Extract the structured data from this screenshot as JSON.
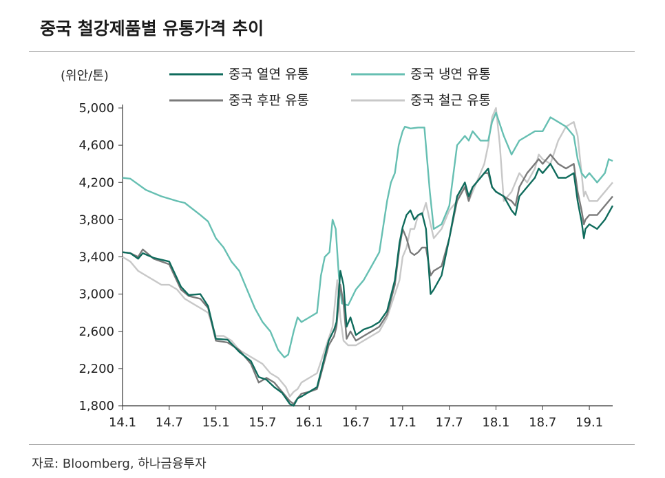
{
  "title": "중국 철강제품별 유통가격 추이",
  "source": "자료: Bloomberg, 하나금융투자",
  "chart_data": {
    "type": "line",
    "unit_label": "(위안/톤)",
    "ylim": [
      1800,
      5000
    ],
    "yticks": [
      1800,
      2200,
      2600,
      3000,
      3400,
      3800,
      4200,
      4600,
      5000
    ],
    "ytick_labels": [
      "1,800",
      "2,200",
      "2,600",
      "3,000",
      "3,400",
      "3,800",
      "4,200",
      "4,600",
      "5,000"
    ],
    "xlim": [
      0,
      63
    ],
    "xticks": [
      0,
      6,
      12,
      18,
      24,
      30,
      36,
      42,
      48,
      54,
      60
    ],
    "xtick_labels": [
      "14.1",
      "14.7",
      "15.1",
      "15.7",
      "16.1",
      "16.7",
      "17.1",
      "17.7",
      "18.1",
      "18.7",
      "19.1"
    ],
    "legend_position": "top",
    "series": [
      {
        "name": "중국 열연 유통",
        "color": "#0f6b5c",
        "points": [
          [
            0,
            3450
          ],
          [
            1,
            3440
          ],
          [
            2,
            3380
          ],
          [
            2.6,
            3440
          ],
          [
            4,
            3390
          ],
          [
            6,
            3350
          ],
          [
            7.5,
            3080
          ],
          [
            8.5,
            2990
          ],
          [
            10,
            3000
          ],
          [
            11,
            2870
          ],
          [
            12,
            2520
          ],
          [
            13.5,
            2510
          ],
          [
            15,
            2380
          ],
          [
            16.5,
            2280
          ],
          [
            17.5,
            2110
          ],
          [
            18.5,
            2080
          ],
          [
            19.5,
            2000
          ],
          [
            20.5,
            1940
          ],
          [
            21.5,
            1820
          ],
          [
            22,
            1800
          ],
          [
            22.5,
            1880
          ],
          [
            23,
            1900
          ],
          [
            24,
            1950
          ],
          [
            25,
            2000
          ],
          [
            26.5,
            2500
          ],
          [
            27.2,
            2620
          ],
          [
            27.5,
            2700
          ],
          [
            28,
            3250
          ],
          [
            28.4,
            3100
          ],
          [
            28.8,
            2650
          ],
          [
            29.3,
            2750
          ],
          [
            30,
            2560
          ],
          [
            31,
            2620
          ],
          [
            32,
            2650
          ],
          [
            33,
            2700
          ],
          [
            34,
            2820
          ],
          [
            35,
            3150
          ],
          [
            35.6,
            3550
          ],
          [
            36,
            3720
          ],
          [
            36.5,
            3850
          ],
          [
            37,
            3900
          ],
          [
            37.5,
            3800
          ],
          [
            38,
            3850
          ],
          [
            38.5,
            3870
          ],
          [
            39,
            3700
          ],
          [
            39.6,
            3000
          ],
          [
            40,
            3050
          ],
          [
            41,
            3200
          ],
          [
            42,
            3600
          ],
          [
            43,
            4050
          ],
          [
            44,
            4200
          ],
          [
            44.5,
            4050
          ],
          [
            45,
            4150
          ],
          [
            46,
            4250
          ],
          [
            46.5,
            4300
          ],
          [
            47,
            4350
          ],
          [
            47.5,
            4150
          ],
          [
            48,
            4100
          ],
          [
            49,
            4050
          ],
          [
            50,
            3900
          ],
          [
            50.5,
            3850
          ],
          [
            51,
            4050
          ],
          [
            52,
            4150
          ],
          [
            53,
            4250
          ],
          [
            53.5,
            4350
          ],
          [
            54,
            4300
          ],
          [
            55,
            4400
          ],
          [
            56,
            4250
          ],
          [
            57,
            4250
          ],
          [
            58,
            4300
          ],
          [
            58.5,
            4000
          ],
          [
            59,
            3780
          ],
          [
            59.3,
            3600
          ],
          [
            59.5,
            3700
          ],
          [
            60,
            3750
          ],
          [
            61,
            3700
          ],
          [
            62,
            3800
          ],
          [
            63,
            3950
          ]
        ]
      },
      {
        "name": "중국 냉연 유통",
        "color": "#66bfb2",
        "points": [
          [
            0,
            4250
          ],
          [
            1,
            4240
          ],
          [
            3,
            4120
          ],
          [
            5,
            4050
          ],
          [
            7,
            4000
          ],
          [
            8,
            3980
          ],
          [
            10,
            3850
          ],
          [
            11,
            3780
          ],
          [
            12,
            3600
          ],
          [
            13,
            3500
          ],
          [
            14,
            3350
          ],
          [
            15,
            3250
          ],
          [
            16,
            3050
          ],
          [
            17,
            2850
          ],
          [
            18,
            2700
          ],
          [
            19,
            2600
          ],
          [
            20,
            2400
          ],
          [
            20.8,
            2320
          ],
          [
            21.3,
            2350
          ],
          [
            22,
            2600
          ],
          [
            22.5,
            2750
          ],
          [
            23,
            2700
          ],
          [
            24,
            2750
          ],
          [
            25,
            2800
          ],
          [
            25.5,
            3200
          ],
          [
            26,
            3400
          ],
          [
            26.6,
            3450
          ],
          [
            27,
            3800
          ],
          [
            27.4,
            3700
          ],
          [
            27.8,
            3200
          ],
          [
            28.2,
            2900
          ],
          [
            29,
            2880
          ],
          [
            30,
            3050
          ],
          [
            31,
            3150
          ],
          [
            32,
            3300
          ],
          [
            33,
            3450
          ],
          [
            34,
            4000
          ],
          [
            34.5,
            4200
          ],
          [
            35,
            4300
          ],
          [
            35.5,
            4600
          ],
          [
            36,
            4750
          ],
          [
            36.3,
            4800
          ],
          [
            37,
            4780
          ],
          [
            38,
            4790
          ],
          [
            38.8,
            4790
          ],
          [
            39.5,
            4100
          ],
          [
            40,
            3700
          ],
          [
            41,
            3750
          ],
          [
            42,
            3950
          ],
          [
            43,
            4600
          ],
          [
            44,
            4700
          ],
          [
            44.5,
            4650
          ],
          [
            45,
            4750
          ],
          [
            46,
            4650
          ],
          [
            47,
            4650
          ],
          [
            47.5,
            4850
          ],
          [
            48,
            4950
          ],
          [
            49,
            4700
          ],
          [
            50,
            4500
          ],
          [
            51,
            4650
          ],
          [
            52,
            4700
          ],
          [
            53,
            4750
          ],
          [
            54,
            4750
          ],
          [
            55,
            4900
          ],
          [
            56,
            4850
          ],
          [
            57,
            4800
          ],
          [
            58,
            4700
          ],
          [
            58.5,
            4450
          ],
          [
            59,
            4300
          ],
          [
            59.5,
            4250
          ],
          [
            60,
            4300
          ],
          [
            61,
            4200
          ],
          [
            62,
            4300
          ],
          [
            62.5,
            4450
          ],
          [
            63,
            4430
          ]
        ]
      },
      {
        "name": "중국 후판 유통",
        "color": "#7a7a7a",
        "points": [
          [
            0,
            3450
          ],
          [
            1,
            3440
          ],
          [
            2,
            3400
          ],
          [
            2.6,
            3480
          ],
          [
            4,
            3380
          ],
          [
            6,
            3320
          ],
          [
            7.5,
            3050
          ],
          [
            8.5,
            2980
          ],
          [
            10,
            2950
          ],
          [
            11,
            2850
          ],
          [
            12,
            2500
          ],
          [
            13.5,
            2480
          ],
          [
            15,
            2400
          ],
          [
            16.5,
            2250
          ],
          [
            17.5,
            2050
          ],
          [
            18.5,
            2100
          ],
          [
            19.5,
            2050
          ],
          [
            20.5,
            1950
          ],
          [
            21.5,
            1850
          ],
          [
            22,
            1820
          ],
          [
            22.5,
            1880
          ],
          [
            23,
            1930
          ],
          [
            24,
            1950
          ],
          [
            25,
            1980
          ],
          [
            26.5,
            2450
          ],
          [
            27.2,
            2550
          ],
          [
            27.5,
            2650
          ],
          [
            28,
            3100
          ],
          [
            28.4,
            2900
          ],
          [
            28.8,
            2520
          ],
          [
            29.3,
            2600
          ],
          [
            30,
            2500
          ],
          [
            31,
            2550
          ],
          [
            32,
            2600
          ],
          [
            33,
            2650
          ],
          [
            34,
            2780
          ],
          [
            35,
            3100
          ],
          [
            35.6,
            3500
          ],
          [
            36,
            3700
          ],
          [
            36.5,
            3600
          ],
          [
            37,
            3450
          ],
          [
            37.5,
            3420
          ],
          [
            38,
            3450
          ],
          [
            38.5,
            3500
          ],
          [
            39,
            3500
          ],
          [
            39.6,
            3200
          ],
          [
            40,
            3250
          ],
          [
            41,
            3300
          ],
          [
            42,
            3600
          ],
          [
            43,
            4000
          ],
          [
            44,
            4150
          ],
          [
            44.5,
            4000
          ],
          [
            45,
            4150
          ],
          [
            46,
            4250
          ],
          [
            46.5,
            4300
          ],
          [
            47,
            4300
          ],
          [
            47.5,
            4150
          ],
          [
            48,
            4100
          ],
          [
            49,
            4050
          ],
          [
            50,
            4000
          ],
          [
            50.5,
            3950
          ],
          [
            51,
            4150
          ],
          [
            52,
            4300
          ],
          [
            53,
            4400
          ],
          [
            53.5,
            4450
          ],
          [
            54,
            4400
          ],
          [
            55,
            4500
          ],
          [
            56,
            4400
          ],
          [
            57,
            4350
          ],
          [
            58,
            4400
          ],
          [
            58.5,
            4100
          ],
          [
            59,
            3900
          ],
          [
            59.3,
            3750
          ],
          [
            59.5,
            3800
          ],
          [
            60,
            3850
          ],
          [
            61,
            3850
          ],
          [
            62,
            3950
          ],
          [
            63,
            4050
          ]
        ]
      },
      {
        "name": "중국 철근 유통",
        "color": "#c8c8c8",
        "points": [
          [
            0,
            3400
          ],
          [
            1,
            3350
          ],
          [
            2,
            3250
          ],
          [
            3,
            3200
          ],
          [
            4,
            3150
          ],
          [
            5,
            3100
          ],
          [
            6,
            3100
          ],
          [
            7,
            3050
          ],
          [
            8,
            2950
          ],
          [
            9,
            2900
          ],
          [
            10,
            2850
          ],
          [
            11,
            2800
          ],
          [
            12,
            2550
          ],
          [
            13,
            2550
          ],
          [
            14,
            2500
          ],
          [
            15,
            2400
          ],
          [
            16,
            2350
          ],
          [
            17,
            2300
          ],
          [
            18,
            2250
          ],
          [
            19,
            2150
          ],
          [
            20,
            2100
          ],
          [
            21,
            2000
          ],
          [
            21.5,
            1900
          ],
          [
            22,
            1950
          ],
          [
            22.5,
            1980
          ],
          [
            23,
            2050
          ],
          [
            24,
            2100
          ],
          [
            25,
            2150
          ],
          [
            26,
            2400
          ],
          [
            26.6,
            2550
          ],
          [
            27,
            2650
          ],
          [
            27.6,
            3150
          ],
          [
            28,
            2750
          ],
          [
            28.4,
            2500
          ],
          [
            29,
            2450
          ],
          [
            30,
            2450
          ],
          [
            31,
            2500
          ],
          [
            32,
            2550
          ],
          [
            33,
            2600
          ],
          [
            34,
            2750
          ],
          [
            35,
            3000
          ],
          [
            35.6,
            3150
          ],
          [
            36,
            3400
          ],
          [
            36.5,
            3500
          ],
          [
            37,
            3700
          ],
          [
            37.5,
            3700
          ],
          [
            38,
            3850
          ],
          [
            38.5,
            3850
          ],
          [
            39,
            3980
          ],
          [
            39.6,
            3750
          ],
          [
            40,
            3600
          ],
          [
            41,
            3700
          ],
          [
            42,
            3900
          ],
          [
            43,
            4000
          ],
          [
            44,
            4200
          ],
          [
            44.5,
            4000
          ],
          [
            45,
            4100
          ],
          [
            46,
            4300
          ],
          [
            46.5,
            4400
          ],
          [
            47,
            4600
          ],
          [
            47.5,
            4900
          ],
          [
            48,
            5000
          ],
          [
            48.5,
            4600
          ],
          [
            49,
            4000
          ],
          [
            50,
            4100
          ],
          [
            51,
            4300
          ],
          [
            52,
            4200
          ],
          [
            53,
            4350
          ],
          [
            53.5,
            4500
          ],
          [
            54,
            4450
          ],
          [
            55,
            4400
          ],
          [
            56,
            4650
          ],
          [
            57,
            4800
          ],
          [
            58,
            4850
          ],
          [
            58.5,
            4700
          ],
          [
            59,
            4300
          ],
          [
            59.3,
            4050
          ],
          [
            59.5,
            4100
          ],
          [
            60,
            4000
          ],
          [
            61,
            4000
          ],
          [
            62,
            4100
          ],
          [
            63,
            4200
          ]
        ]
      }
    ]
  }
}
